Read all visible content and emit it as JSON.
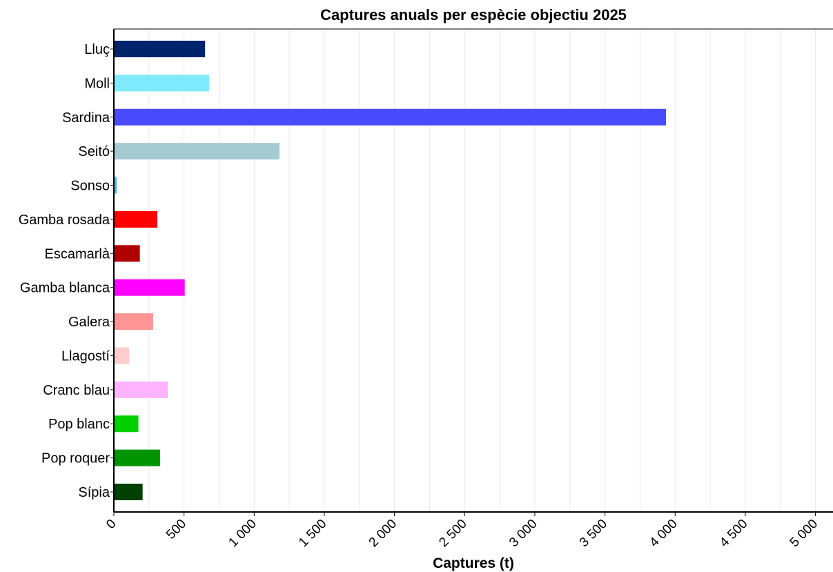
{
  "chart_data": {
    "type": "bar",
    "orientation": "horizontal",
    "title": "Captures anuals per espècie objectiu 2025",
    "xlabel": "Captures (t)",
    "ylabel": "",
    "xlim": [
      0,
      5000
    ],
    "x_ticks": [
      0,
      500,
      1000,
      1500,
      2000,
      2500,
      3000,
      3500,
      4000,
      4500,
      5000
    ],
    "x_tick_labels": [
      "0",
      "500",
      "1 000",
      "1 500",
      "2 000",
      "2 500",
      "3 000",
      "3 500",
      "4 000",
      "4 500",
      "5 000"
    ],
    "grid": "vertical",
    "categories": [
      "Lluç",
      "Moll",
      "Sardina",
      "Seitó",
      "Sonso",
      "Gamba rosada",
      "Escamarlà",
      "Gamba blanca",
      "Galera",
      "Llagostí",
      "Cranc blau",
      "Pop blanc",
      "Pop roquer",
      "Sípia"
    ],
    "values": [
      650,
      680,
      3935,
      1180,
      20,
      310,
      185,
      505,
      280,
      110,
      385,
      175,
      330,
      205
    ],
    "colors": [
      "#00246b",
      "#80ebff",
      "#4a4aff",
      "#a5cbd2",
      "#5bb5e8",
      "#ff0000",
      "#b00000",
      "#ff00ff",
      "#ff9494",
      "#ffcccc",
      "#ffb3ff",
      "#00d000",
      "#009400",
      "#004000"
    ]
  }
}
